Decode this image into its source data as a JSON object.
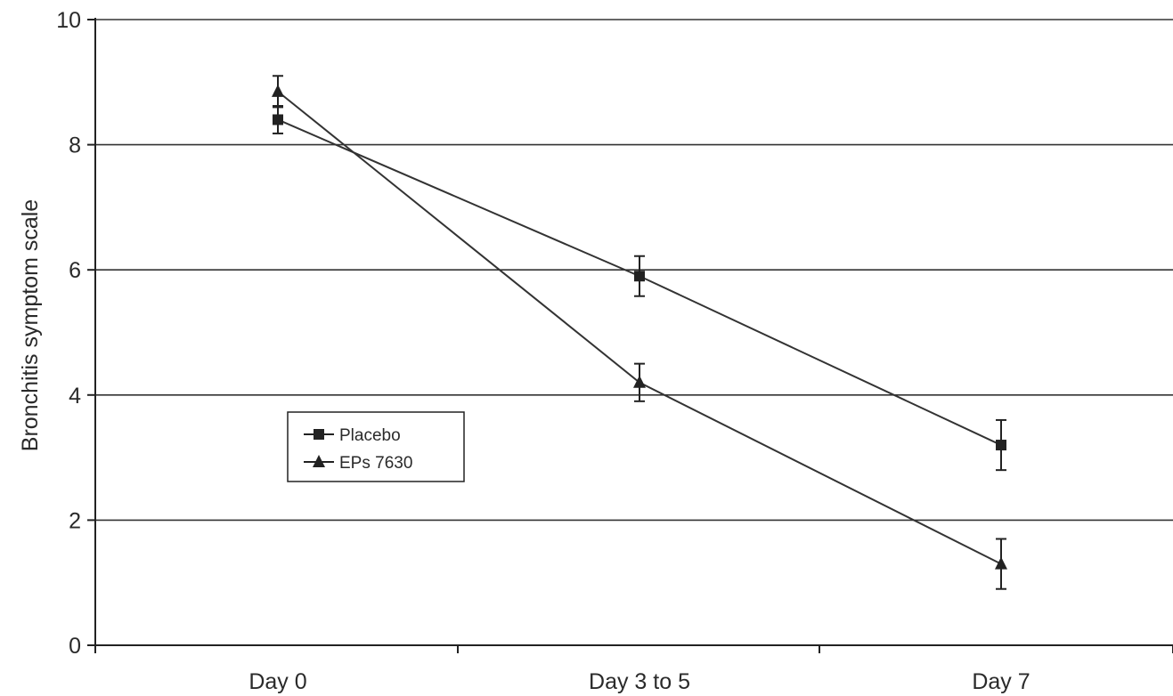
{
  "chart_data": {
    "type": "line",
    "title": "",
    "xlabel": "",
    "ylabel": "Bronchitis symptom scale",
    "categories": [
      "Day 0",
      "Day 3 to 5",
      "Day 7"
    ],
    "ylim": [
      0,
      10
    ],
    "yticks": [
      0,
      2,
      4,
      6,
      8,
      10
    ],
    "grid": "horizontal",
    "legend_position": "center-left",
    "series": [
      {
        "name": "Placebo",
        "marker": "square",
        "values": [
          8.4,
          5.9,
          3.2
        ],
        "error": [
          0.22,
          0.32,
          0.4
        ]
      },
      {
        "name": "EPs 7630",
        "marker": "triangle",
        "values": [
          8.85,
          4.2,
          1.3
        ],
        "error": [
          0.25,
          0.3,
          0.4
        ]
      }
    ]
  }
}
